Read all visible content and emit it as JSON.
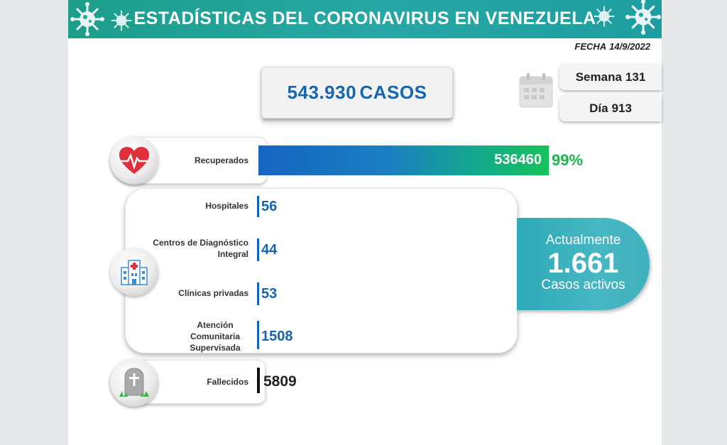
{
  "header": {
    "title": "ESTADÍSTICAS DEL CORONAVIRUS EN VENEZUELA"
  },
  "fecha": {
    "label": "FECHA",
    "value": "14/9/2022"
  },
  "casos": {
    "value": "543.930",
    "label": "CASOS"
  },
  "semana": {
    "label": "Semana",
    "value": "131"
  },
  "dia": {
    "label": "Día",
    "value": "913"
  },
  "recuperados": {
    "label": "Recuperados",
    "value": "536460",
    "percent": "99%",
    "bar_fraction": 0.99
  },
  "hospitalizacion": [
    {
      "label": "Hospitales",
      "value": "56"
    },
    {
      "label": "Centros de Diagnóstico Integral",
      "value": "44"
    },
    {
      "label": "Clínicas privadas",
      "value": "53"
    },
    {
      "label": "Atención Comunitaria Supervisada",
      "value": "1508"
    }
  ],
  "activos": {
    "line1": "Actualmente",
    "value": "1.661",
    "line3": "Casos activos"
  },
  "fallecidos": {
    "label": "Fallecidos",
    "value": "5809"
  },
  "icons": [
    "virus-icon",
    "calendar-icon",
    "heart-icon",
    "hospital-icon",
    "tombstone-icon"
  ],
  "colors": {
    "header": "#27a7a4",
    "blue": "#1565b0",
    "green": "#19b64e",
    "teal": "#3fb1bd"
  }
}
